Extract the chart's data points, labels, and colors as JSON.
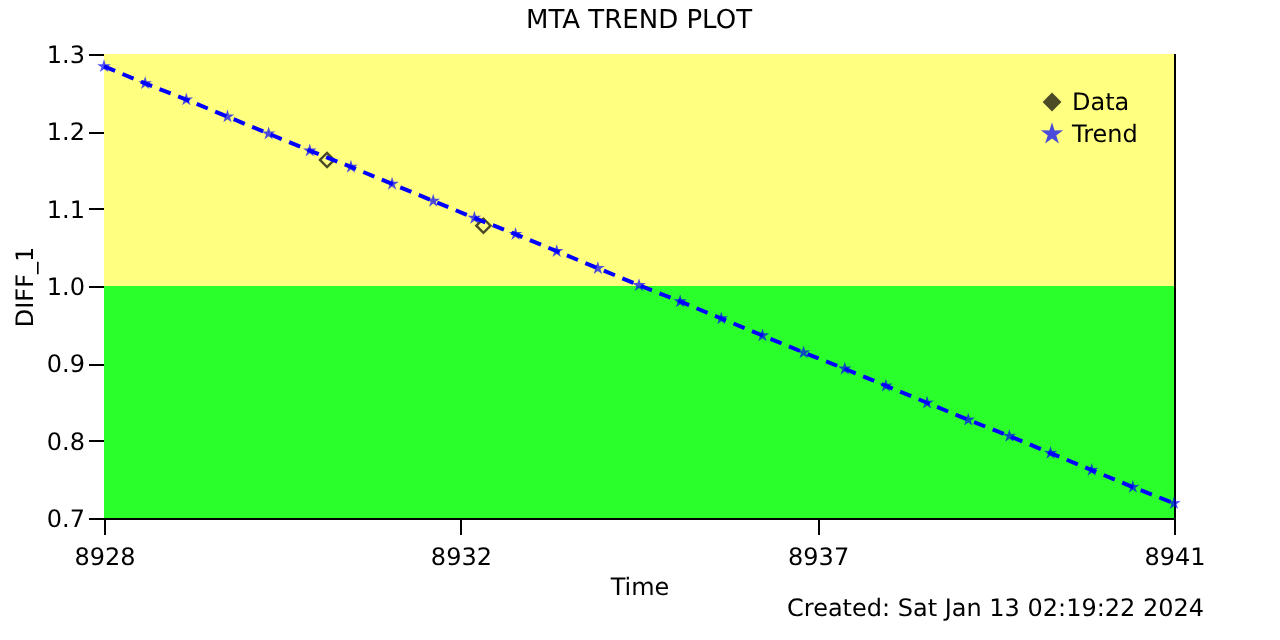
{
  "chart_data": {
    "type": "line",
    "title": "MTA TREND PLOT",
    "xlabel": "Time",
    "ylabel": "DIFF_1",
    "annotations": [
      "Created: Sat Jan 13 02:19:22 2024"
    ],
    "xlim": [
      8928,
      8941
    ],
    "xticks": [
      8928,
      {
        "value": 8932.33,
        "label": "8932"
      },
      {
        "value": 8936.67,
        "label": "8937"
      },
      8941
    ],
    "ylim": [
      0.7,
      1.3
    ],
    "yticks": [
      0.7,
      0.8,
      0.9,
      {
        "value": 1,
        "label": "1.0"
      },
      1.1,
      1.2,
      1.3
    ],
    "legend": "top right",
    "bands": [
      {
        "axis": "y",
        "from": 0.7,
        "to": 1.0,
        "color": "#2bff2b"
      },
      {
        "axis": "y",
        "from": 1.0,
        "to": 1.3,
        "color": "#ffff80"
      }
    ],
    "series": [
      {
        "name": "Data",
        "type": "scatter",
        "marker": "diamond",
        "color": "#000000",
        "x": [
          8930.71,
          8932.61
        ],
        "values": [
          1.163,
          1.078
        ]
      },
      {
        "name": "Trend",
        "marker": "star",
        "line_style": "dashed",
        "color": "#0000ff",
        "x": [
          8928,
          8928.5,
          8929,
          8929.5,
          8930,
          8930.5,
          8931,
          8931.5,
          8932,
          8932.5,
          8933,
          8933.5,
          8934,
          8934.5,
          8935,
          8935.5,
          8936,
          8936.5,
          8937,
          8937.5,
          8938,
          8938.5,
          8939,
          8939.5,
          8940,
          8940.5,
          8941
        ],
        "values": [
          1.284,
          1.262,
          1.241,
          1.219,
          1.197,
          1.175,
          1.154,
          1.132,
          1.11,
          1.088,
          1.067,
          1.045,
          1.023,
          1.001,
          0.98,
          0.958,
          0.936,
          0.914,
          0.893,
          0.871,
          0.849,
          0.827,
          0.806,
          0.784,
          0.762,
          0.74,
          0.719
        ]
      }
    ]
  }
}
